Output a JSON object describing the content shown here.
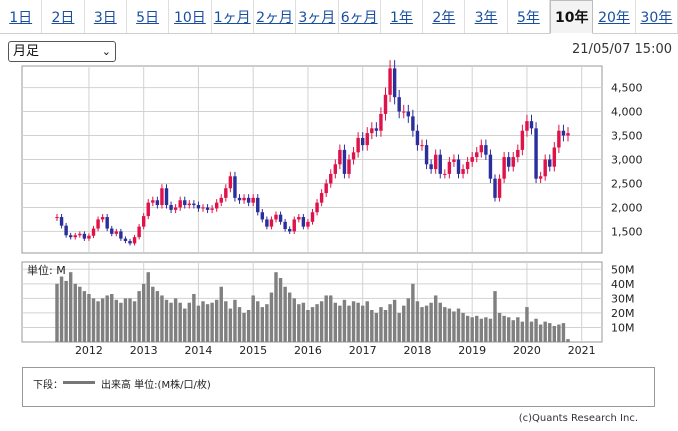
{
  "tabs": [
    {
      "label": "1日",
      "active": false
    },
    {
      "label": "2日",
      "active": false
    },
    {
      "label": "3日",
      "active": false
    },
    {
      "label": "5日",
      "active": false
    },
    {
      "label": "10日",
      "active": false
    },
    {
      "label": "1ヶ月",
      "active": false
    },
    {
      "label": "2ヶ月",
      "active": false
    },
    {
      "label": "3ヶ月",
      "active": false
    },
    {
      "label": "6ヶ月",
      "active": false
    },
    {
      "label": "1年",
      "active": false
    },
    {
      "label": "2年",
      "active": false
    },
    {
      "label": "3年",
      "active": false
    },
    {
      "label": "5年",
      "active": false
    },
    {
      "label": "10年",
      "active": true
    },
    {
      "label": "20年",
      "active": false
    },
    {
      "label": "30年",
      "active": false
    }
  ],
  "period_select": {
    "value": "月足"
  },
  "timestamp": "21/05/07 15:00",
  "legend": {
    "label": "下段：",
    "text": "出来高 単位:(M株/口/枚)"
  },
  "credit": "(c)Quants Research Inc.",
  "colors": {
    "up": "#e0124a",
    "down": "#2b2f9b",
    "volume": "#808080",
    "grid": "#d2d2d2"
  },
  "chart_data": [
    {
      "type": "candlestick",
      "interval": "monthly",
      "start": "2011-06",
      "x_ticks": [
        "2012",
        "2013",
        "2014",
        "2015",
        "2016",
        "2017",
        "2018",
        "2019",
        "2020",
        "2021"
      ],
      "y_ticks": [
        1500,
        2000,
        2500,
        3000,
        3500,
        4000,
        4500
      ],
      "ylim": [
        1050,
        4950
      ],
      "close": [
        1800,
        1620,
        1420,
        1380,
        1420,
        1450,
        1350,
        1410,
        1560,
        1750,
        1800,
        1560,
        1450,
        1500,
        1350,
        1300,
        1250,
        1380,
        1600,
        1820,
        2100,
        2150,
        2050,
        2400,
        2050,
        1950,
        2000,
        2150,
        2050,
        2080,
        2050,
        1980,
        2000,
        1950,
        1980,
        2100,
        2200,
        2400,
        2650,
        2200,
        2150,
        2200,
        2100,
        2200,
        1900,
        1750,
        1600,
        1750,
        1850,
        1700,
        1550,
        1500,
        1750,
        1800,
        1600,
        1700,
        1900,
        2100,
        2300,
        2500,
        2700,
        2900,
        3200,
        2700,
        3000,
        3150,
        3450,
        3300,
        3550,
        3650,
        3600,
        3950,
        4350,
        4900,
        4300,
        4000,
        4000,
        3900,
        3600,
        3300,
        3300,
        2900,
        2800,
        3100,
        2700,
        2700,
        2950,
        3000,
        2700,
        2800,
        2950,
        3050,
        3150,
        3300,
        3100,
        2600,
        2200,
        2600,
        3050,
        2850,
        3050,
        3200,
        3600,
        3800,
        3650,
        2600,
        2650,
        3000,
        2850,
        3250,
        3600,
        3500,
        3550
      ],
      "open": [
        1780,
        1800,
        1620,
        1420,
        1380,
        1420,
        1450,
        1350,
        1410,
        1560,
        1750,
        1800,
        1560,
        1450,
        1500,
        1350,
        1300,
        1250,
        1380,
        1600,
        1820,
        2100,
        2150,
        2050,
        2400,
        2050,
        1950,
        2000,
        2150,
        2050,
        2080,
        2050,
        1980,
        2000,
        1950,
        1980,
        2100,
        2200,
        2400,
        2650,
        2200,
        2150,
        2200,
        2100,
        2200,
        1900,
        1750,
        1600,
        1750,
        1850,
        1700,
        1550,
        1500,
        1750,
        1800,
        1600,
        1700,
        1900,
        2100,
        2300,
        2500,
        2700,
        2900,
        3200,
        2700,
        3000,
        3150,
        3450,
        3300,
        3550,
        3650,
        3600,
        3950,
        4350,
        4900,
        4300,
        4000,
        4000,
        3900,
        3600,
        3300,
        3300,
        2900,
        2800,
        3100,
        2700,
        2700,
        2950,
        3000,
        2700,
        2800,
        2950,
        3050,
        3150,
        3300,
        3100,
        2600,
        2200,
        2600,
        3050,
        2850,
        3050,
        3200,
        3600,
        3800,
        3650,
        2600,
        2650,
        3000,
        2850,
        3250,
        3600,
        3500
      ],
      "volume_axis": {
        "label": "単位: M",
        "ticks": [
          "10M",
          "20M",
          "30M",
          "40M",
          "50M"
        ],
        "ylim": [
          0,
          55
        ]
      },
      "volume": [
        40,
        45,
        42,
        48,
        40,
        38,
        35,
        33,
        30,
        28,
        30,
        32,
        33,
        29,
        27,
        30,
        30,
        28,
        35,
        40,
        48,
        38,
        35,
        32,
        29,
        27,
        30,
        27,
        23,
        27,
        33,
        25,
        28,
        26,
        27,
        29,
        38,
        28,
        23,
        29,
        24,
        20,
        22,
        32,
        28,
        24,
        26,
        34,
        48,
        44,
        38,
        34,
        30,
        26,
        27,
        22,
        24,
        26,
        28,
        32,
        32,
        27,
        25,
        29,
        25,
        28,
        27,
        25,
        28,
        22,
        20,
        24,
        22,
        26,
        29,
        20,
        25,
        30,
        40,
        28,
        24,
        25,
        27,
        32,
        27,
        24,
        23,
        21,
        23,
        20,
        18,
        17,
        18,
        16,
        17,
        16,
        35,
        20,
        18,
        17,
        15,
        17,
        14,
        24,
        14,
        16,
        12,
        14,
        13,
        11,
        12,
        13,
        2
      ]
    }
  ]
}
